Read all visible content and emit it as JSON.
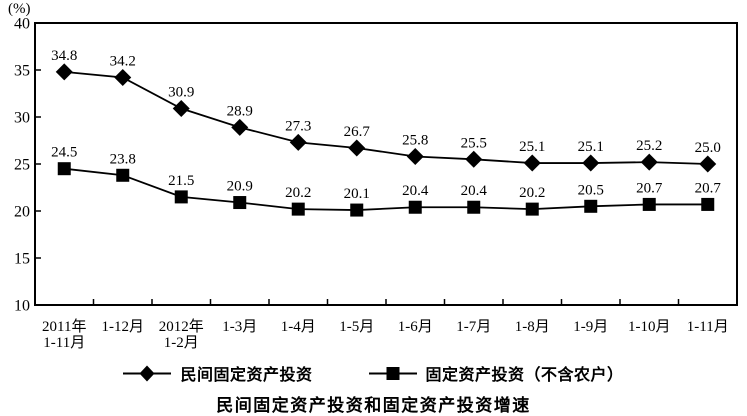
{
  "chart_data": {
    "type": "line",
    "title": "民间固定资产投资和固定资产投资增速",
    "ylabel": "(%)",
    "ylim": [
      10,
      40
    ],
    "yticks": [
      10,
      15,
      20,
      25,
      30,
      35,
      40
    ],
    "grid": false,
    "legend_position": "bottom",
    "plot_border": true,
    "categories": [
      "2011年\n1-11月",
      "1-12月",
      "2012年\n1-2月",
      "1-3月",
      "1-4月",
      "1-5月",
      "1-6月",
      "1-7月",
      "1-8月",
      "1-9月",
      "1-10月",
      "1-11月"
    ],
    "series": [
      {
        "name": "民间固定资产投资",
        "marker": "diamond",
        "values": [
          34.8,
          34.2,
          30.9,
          28.9,
          27.3,
          26.7,
          25.8,
          25.5,
          25.1,
          25.1,
          25.2,
          25.0
        ]
      },
      {
        "name": "固定资产投资（不含农户）",
        "marker": "square",
        "values": [
          24.5,
          23.8,
          21.5,
          20.9,
          20.2,
          20.1,
          20.4,
          20.4,
          20.2,
          20.5,
          20.7,
          20.7
        ]
      }
    ],
    "colors": {
      "line": "#000000",
      "marker": "#000000",
      "text": "#000000",
      "background": "#ffffff"
    }
  }
}
